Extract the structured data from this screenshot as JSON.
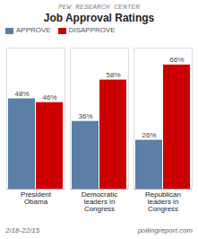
{
  "chart_data": {
    "type": "bar",
    "title": "Job Approval Ratings",
    "subtitle": "PEW RESEARCH CENTER",
    "categories": [
      "President\nObama",
      "Democratic\nleaders in\nCongress",
      "Republican\nleaders in\nCongress"
    ],
    "series": [
      {
        "name": "APPROVE",
        "color": "#5b7fa6",
        "values": [
          48,
          36,
          26
        ],
        "value_labels": [
          "48%",
          "36%",
          "26%"
        ]
      },
      {
        "name": "DISAPPROVE",
        "color": "#cc0000",
        "values": [
          46,
          58,
          66
        ],
        "value_labels": [
          "46%",
          "58%",
          "66%"
        ]
      }
    ],
    "ylim": [
      0,
      75
    ],
    "tick_labels": "x",
    "grid": false,
    "legend": "upper left",
    "data_labels": true,
    "annotations": [
      "2/18-22/15",
      "pollingreport.com"
    ]
  }
}
